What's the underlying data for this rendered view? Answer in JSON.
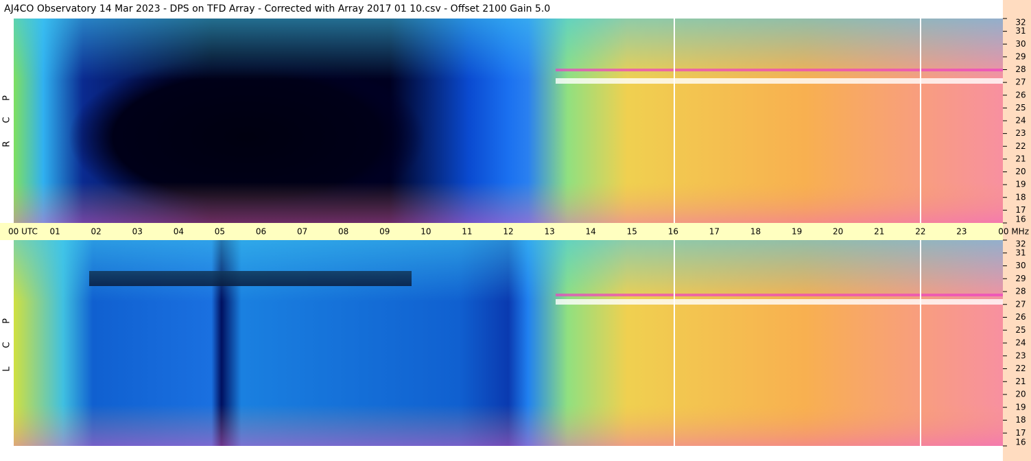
{
  "header": {
    "title": "AJ4CO Observatory  14 Mar 2023  -  DPS on TFD Array  -  Corrected with Array 2017 01 10.csv  -  Offset 2100  Gain 5.0"
  },
  "panels": [
    {
      "letters": [
        "P",
        "C",
        "R"
      ],
      "freq_ticks": [
        32,
        31,
        30,
        29,
        28,
        27,
        26,
        25,
        24,
        23,
        22,
        21,
        20,
        19,
        18,
        17,
        16
      ]
    },
    {
      "letters": [
        "P",
        "C",
        "L"
      ],
      "freq_ticks": [
        32,
        31,
        30,
        29,
        28,
        27,
        26,
        25,
        24,
        23,
        22,
        21,
        20,
        19,
        18,
        17,
        16
      ]
    }
  ],
  "time_axis": {
    "labels": [
      "00 UTC",
      "01",
      "02",
      "03",
      "04",
      "05",
      "06",
      "07",
      "08",
      "09",
      "10",
      "11",
      "12",
      "13",
      "14",
      "15",
      "16",
      "17",
      "18",
      "19",
      "20",
      "21",
      "22",
      "23",
      "00 MHz"
    ]
  }
}
